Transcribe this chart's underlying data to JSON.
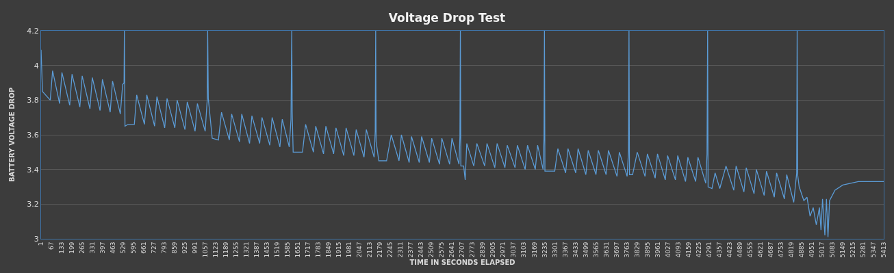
{
  "chart_data": {
    "type": "line",
    "title": "Voltage Drop Test",
    "xlabel": "TIME IN SECONDS ELAPSED",
    "ylabel": "BATTERY VOLTAGE DROP",
    "xlim": [
      1,
      5413
    ],
    "xticks": [
      1,
      67,
      133,
      199,
      265,
      331,
      397,
      463,
      529,
      595,
      661,
      727,
      793,
      859,
      925,
      991,
      1057,
      1123,
      1189,
      1255,
      1321,
      1387,
      1453,
      1519,
      1585,
      1651,
      1717,
      1783,
      1849,
      1915,
      1981,
      2047,
      2113,
      2179,
      2245,
      2311,
      2377,
      2443,
      2509,
      2575,
      2641,
      2707,
      2773,
      2839,
      2905,
      2971,
      3037,
      3103,
      3169,
      3235,
      3301,
      3367,
      3433,
      3499,
      3565,
      3631,
      3697,
      3763,
      3829,
      3895,
      3961,
      4027,
      4093,
      4159,
      4225,
      4291,
      4357,
      4423,
      4489,
      4555,
      4621,
      4687,
      4753,
      4819,
      4885,
      4951,
      5017,
      5083,
      5149,
      5215,
      5281,
      5347,
      5413
    ],
    "ylim": [
      3,
      4.2
    ],
    "yticks": [
      3,
      3.2,
      3.4,
      3.6,
      3.8,
      4,
      4.2
    ],
    "grid": "y",
    "marker": "none",
    "line_style": "solid",
    "series": [
      {
        "color": "#5b9bd5",
        "x": [
          1,
          10,
          60,
          75,
          120,
          135,
          185,
          200,
          250,
          265,
          315,
          330,
          380,
          395,
          445,
          460,
          510,
          525,
          534,
          536,
          540,
          560,
          600,
          615,
          665,
          680,
          730,
          745,
          795,
          810,
          860,
          875,
          925,
          940,
          990,
          1005,
          1055,
          1068,
          1071,
          1075,
          1100,
          1140,
          1160,
          1210,
          1225,
          1275,
          1290,
          1340,
          1355,
          1405,
          1420,
          1470,
          1485,
          1535,
          1550,
          1595,
          1606,
          1611,
          1614,
          1620,
          1680,
          1700,
          1750,
          1765,
          1815,
          1830,
          1880,
          1895,
          1945,
          1960,
          2010,
          2025,
          2075,
          2090,
          2140,
          2147,
          2150,
          2153,
          2170,
          2220,
          2250,
          2300,
          2315,
          2365,
          2380,
          2430,
          2445,
          2495,
          2510,
          2560,
          2575,
          2625,
          2640,
          2685,
          2691,
          2694,
          2697,
          2715,
          2725,
          2735,
          2780,
          2800,
          2850,
          2865,
          2915,
          2930,
          2980,
          2995,
          3045,
          3060,
          3110,
          3125,
          3175,
          3190,
          3225,
          3231,
          3234,
          3237,
          3260,
          3300,
          3320,
          3370,
          3385,
          3435,
          3450,
          3500,
          3515,
          3565,
          3580,
          3630,
          3645,
          3700,
          3715,
          3765,
          3774,
          3777,
          3780,
          3800,
          3830,
          3880,
          3895,
          3945,
          3960,
          4010,
          4025,
          4075,
          4090,
          4140,
          4155,
          4205,
          4220,
          4270,
          4278,
          4282,
          4285,
          4310,
          4330,
          4360,
          4400,
          4450,
          4465,
          4515,
          4530,
          4580,
          4595,
          4645,
          4660,
          4710,
          4725,
          4775,
          4790,
          4835,
          4854,
          4857,
          4860,
          4870,
          4900,
          4920,
          4940,
          4960,
          4980,
          5000,
          5010,
          5020,
          5035,
          5045,
          5055,
          5065,
          5100,
          5150,
          5200,
          5250,
          5413
        ],
        "values": [
          4.09,
          3.85,
          3.8,
          3.97,
          3.78,
          3.96,
          3.77,
          3.95,
          3.76,
          3.94,
          3.75,
          3.93,
          3.74,
          3.92,
          3.73,
          3.91,
          3.72,
          3.89,
          3.9,
          4.2,
          3.65,
          3.66,
          3.66,
          3.83,
          3.66,
          3.83,
          3.65,
          3.82,
          3.64,
          3.81,
          3.64,
          3.8,
          3.63,
          3.79,
          3.62,
          3.78,
          3.62,
          3.8,
          4.2,
          3.81,
          3.58,
          3.57,
          3.73,
          3.57,
          3.72,
          3.56,
          3.72,
          3.55,
          3.71,
          3.55,
          3.7,
          3.54,
          3.7,
          3.53,
          3.69,
          3.53,
          3.69,
          4.2,
          3.73,
          3.5,
          3.5,
          3.66,
          3.5,
          3.65,
          3.49,
          3.65,
          3.49,
          3.64,
          3.48,
          3.64,
          3.48,
          3.63,
          3.47,
          3.63,
          3.47,
          3.62,
          4.2,
          3.56,
          3.45,
          3.45,
          3.6,
          3.45,
          3.6,
          3.44,
          3.59,
          3.44,
          3.59,
          3.44,
          3.58,
          3.43,
          3.58,
          3.43,
          3.58,
          3.43,
          3.59,
          4.2,
          3.42,
          3.42,
          3.34,
          3.55,
          3.42,
          3.55,
          3.42,
          3.55,
          3.41,
          3.55,
          3.41,
          3.54,
          3.41,
          3.54,
          3.4,
          3.54,
          3.4,
          3.54,
          3.4,
          3.58,
          4.2,
          3.39,
          3.39,
          3.39,
          3.52,
          3.38,
          3.52,
          3.38,
          3.52,
          3.37,
          3.51,
          3.37,
          3.51,
          3.37,
          3.51,
          3.36,
          3.5,
          3.36,
          3.51,
          4.2,
          3.37,
          3.37,
          3.5,
          3.36,
          3.49,
          3.35,
          3.49,
          3.34,
          3.48,
          3.34,
          3.48,
          3.33,
          3.47,
          3.33,
          3.47,
          3.32,
          3.49,
          4.2,
          3.3,
          3.29,
          3.38,
          3.29,
          3.42,
          3.28,
          3.42,
          3.27,
          3.41,
          3.26,
          3.4,
          3.25,
          3.39,
          3.24,
          3.38,
          3.23,
          3.37,
          3.21,
          3.38,
          4.2,
          3.37,
          3.3,
          3.22,
          3.24,
          3.13,
          3.18,
          3.08,
          3.18,
          3.05,
          3.23,
          3.02,
          3.23,
          3.01,
          3.22,
          3.28,
          3.31,
          3.32,
          3.33,
          3.33
        ]
      }
    ]
  }
}
